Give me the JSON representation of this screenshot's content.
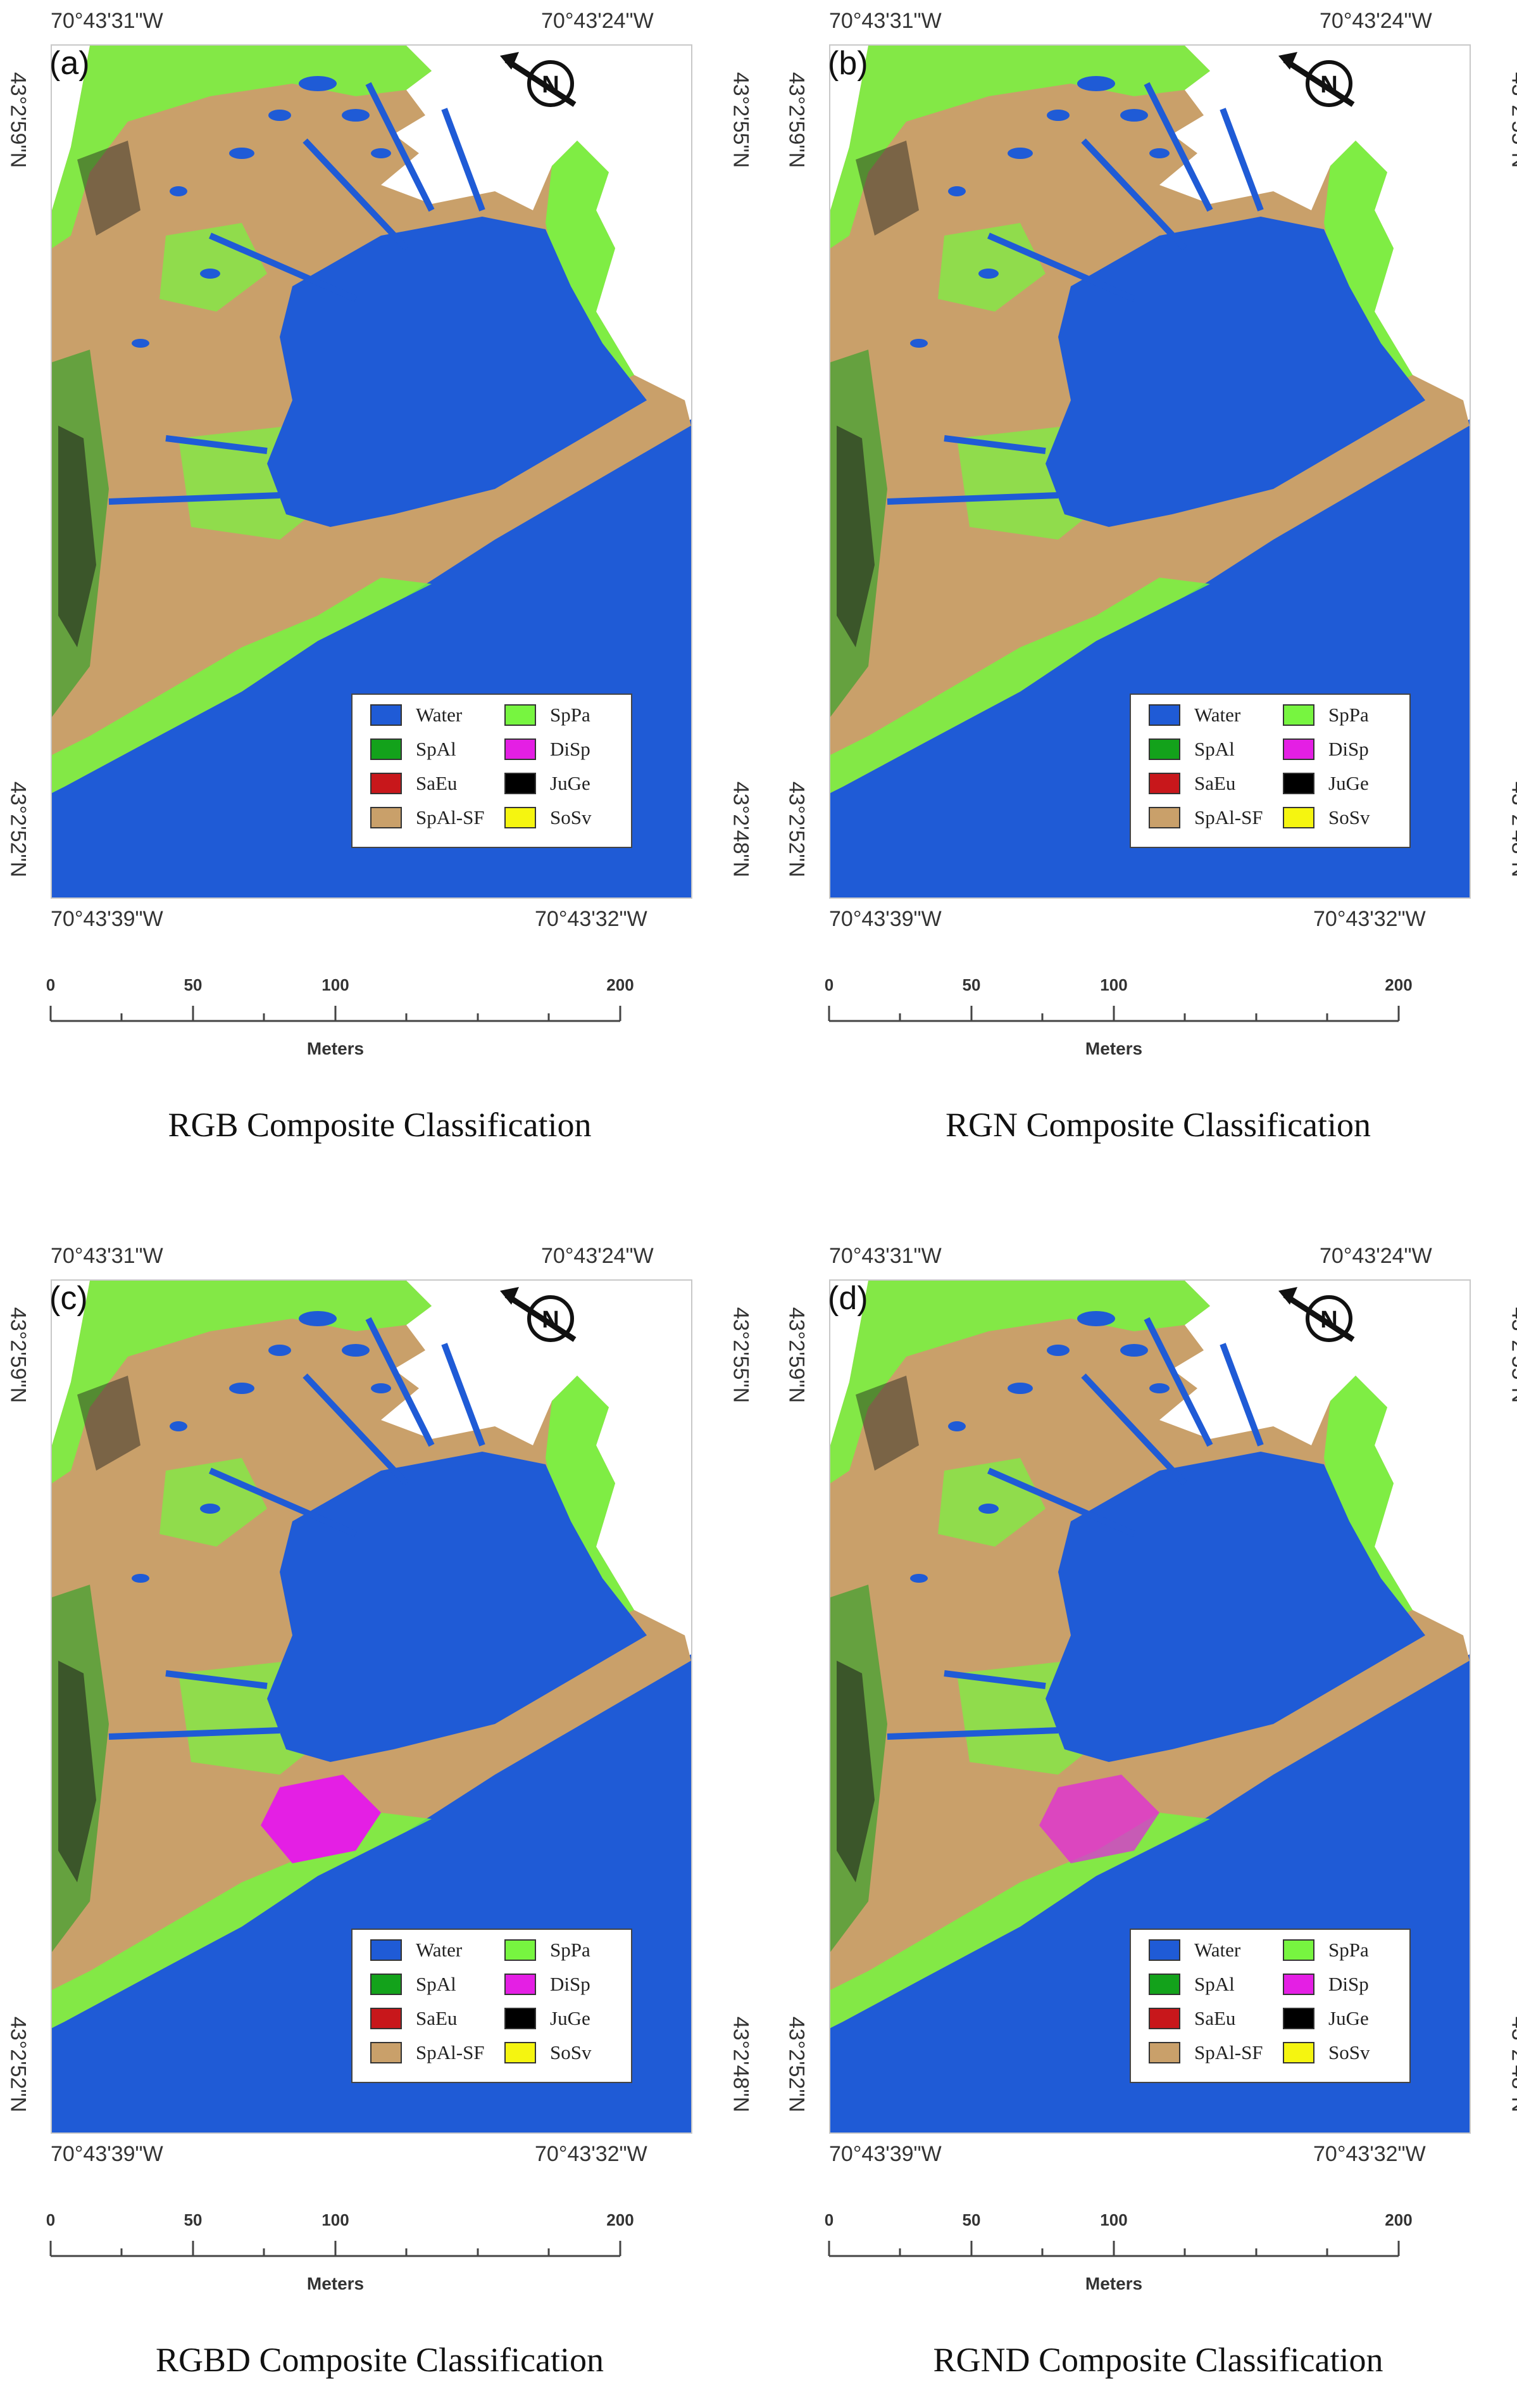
{
  "coords": {
    "top_left": "70°43'31\"W",
    "top_right": "70°43'24\"W",
    "bottom_left": "70°43'39\"W",
    "bottom_right": "70°43'32\"W",
    "left_top": "43°2'59\"N",
    "left_bottom": "43°2'52\"N",
    "right_top": "43°2'55\"N",
    "right_bottom": "43°2'48\"N"
  },
  "legend": [
    {
      "label": "Water",
      "color": "#1f5bd6"
    },
    {
      "label": "SpAl",
      "color": "#13a21b"
    },
    {
      "label": "SaEu",
      "color": "#c8171b"
    },
    {
      "label": "SpAl-SF",
      "color": "#c9a06a"
    },
    {
      "label": "SpPa",
      "color": "#77f540"
    },
    {
      "label": "DiSp",
      "color": "#e41fe4"
    },
    {
      "label": "JuGe",
      "color": "#000000"
    },
    {
      "label": "SoSv",
      "color": "#f5f510"
    }
  ],
  "scale": {
    "ticks": [
      "0",
      "50",
      "100",
      "200"
    ],
    "unit": "Meters"
  },
  "panels": [
    {
      "label": "(a)",
      "caption": "RGB Composite Classification",
      "disp": 0
    },
    {
      "label": "(b)",
      "caption": "RGN Composite Classification",
      "disp": 0
    },
    {
      "label": "(c)",
      "caption": "RGBD Composite Classification",
      "disp": 1
    },
    {
      "label": "(d)",
      "caption": "RGND Composite Classification",
      "disp": 0.7
    }
  ]
}
